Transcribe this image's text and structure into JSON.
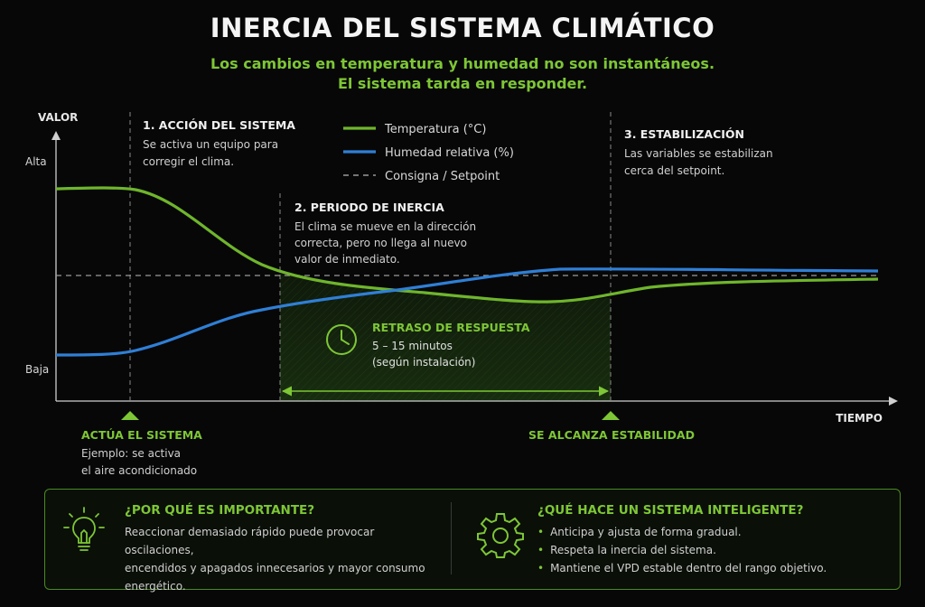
{
  "title": "INERCIA DEL SISTEMA CLIMÁTICO",
  "subtitle_line1": "Los cambios en temperatura y humedad no son instantáneos.",
  "subtitle_line2": "El sistema tarda en responder.",
  "axes": {
    "y_title": "VALOR",
    "y_high": "Alta",
    "y_low": "Baja",
    "x_title": "TIEMPO"
  },
  "legend": [
    {
      "label": "Temperatura (°C)",
      "color": "#6fb52c",
      "style": "solid"
    },
    {
      "label": "Humedad relativa (%)",
      "color": "#2f7fd6",
      "style": "solid"
    },
    {
      "label": "Consigna / Setpoint",
      "color": "#9a9a9a",
      "style": "dashed"
    }
  ],
  "phases": [
    {
      "title": "1. ACCIÓN DEL SISTEMA",
      "lines": [
        "Se activa un equipo para",
        "corregir el clima."
      ]
    },
    {
      "title": "2. PERIODO DE INERCIA",
      "lines": [
        "El clima se mueve en la dirección",
        "correcta, pero no llega al nuevo",
        "valor de inmediato."
      ]
    },
    {
      "title": "3. ESTABILIZACIÓN",
      "lines": [
        "Las variables se estabilizan",
        "cerca del setpoint."
      ]
    }
  ],
  "delay": {
    "title": "RETRASO DE RESPUESTA",
    "range": "5 – 15 minutos",
    "note": "(según instalación)",
    "icon": "clock-icon"
  },
  "markers": {
    "start_title": "ACTÚA EL SISTEMA",
    "start_lines": [
      "Ejemplo: se activa",
      "el aire acondicionado"
    ],
    "end_title": "SE ALCANZA ESTABILIDAD"
  },
  "colors": {
    "accent_green": "#7ec636",
    "temperature": "#6fb52c",
    "humidity": "#2f7fd6",
    "setpoint": "#9a9a9a",
    "background": "#070707"
  },
  "info": {
    "left": {
      "icon": "lightbulb-icon",
      "heading": "¿POR QUÉ ES IMPORTANTE?",
      "lines": [
        "Reaccionar demasiado rápido puede provocar oscilaciones,",
        "encendidos y apagados innecesarios y mayor consumo",
        "energético."
      ]
    },
    "right": {
      "icon": "gear-icon",
      "heading": "¿QUÉ HACE UN SISTEMA INTELIGENTE?",
      "items": [
        "Anticipa y ajusta de forma gradual.",
        "Respeta la inercia del sistema.",
        "Mantiene el VPD estable dentro del rango objetivo."
      ]
    }
  }
}
